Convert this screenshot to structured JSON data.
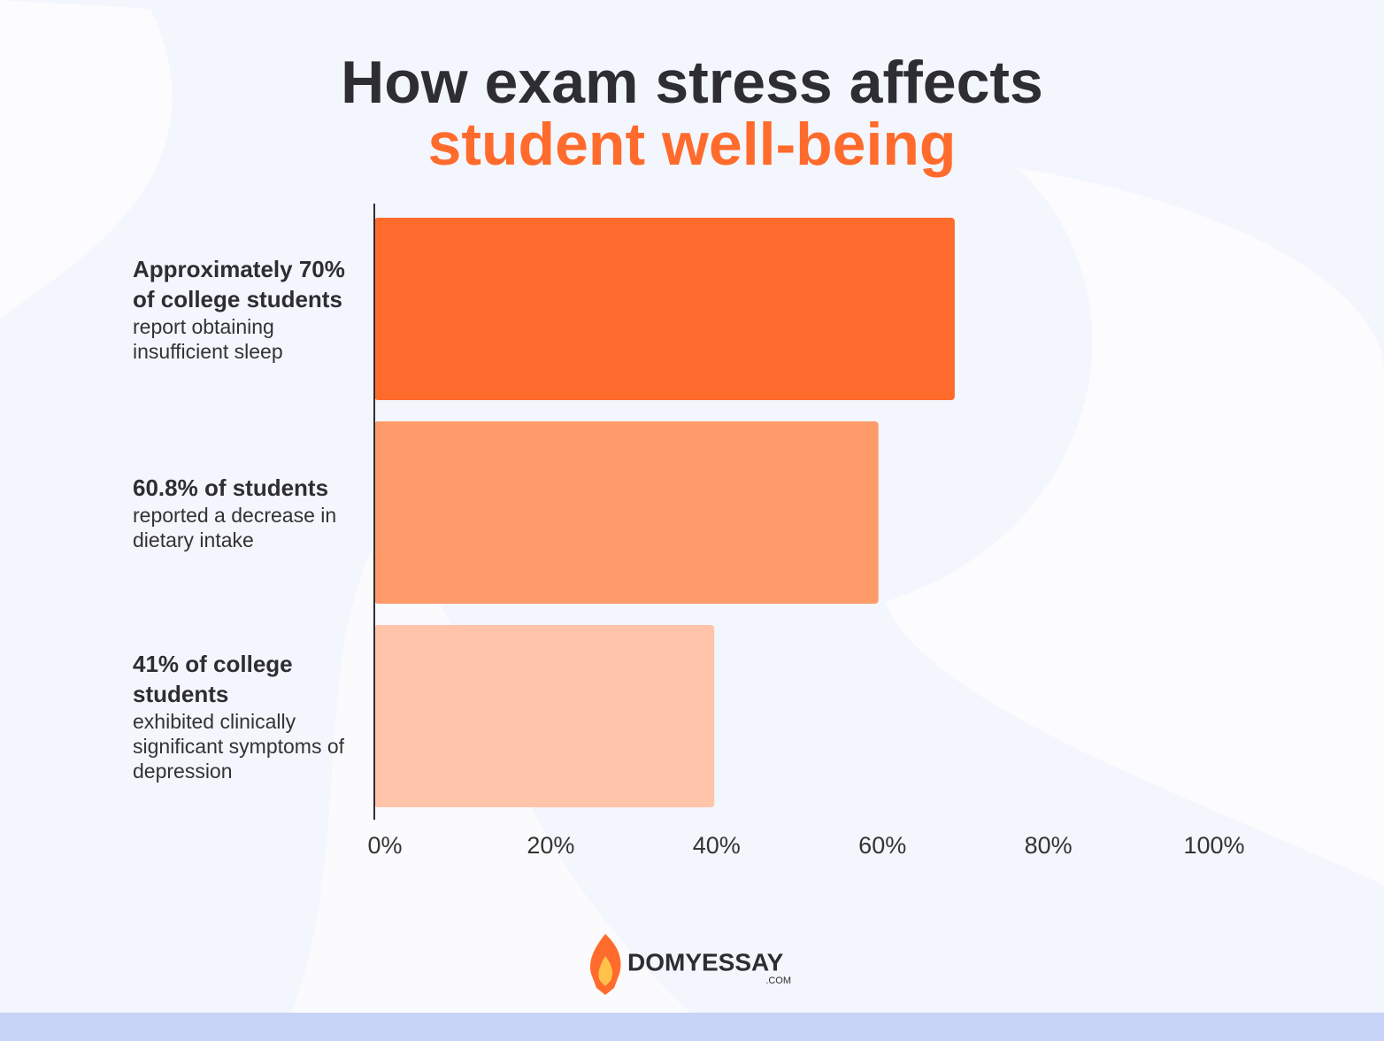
{
  "chart_data": {
    "type": "bar",
    "title": "How exam stress affects",
    "title_highlight": "student well-being",
    "categories": [
      "Approximately 70% of college students",
      "60.8% of students",
      "41% of college students"
    ],
    "descriptions": [
      "report obtaining insufficient sleep",
      "reported a decrease in dietary intake",
      "exhibited clinically significant symptoms of depression"
    ],
    "values": [
      70,
      60.8,
      41
    ],
    "colors": [
      "#ff6b2c",
      "#ff9b6b",
      "#ffc4aa"
    ],
    "xlim": [
      0,
      100
    ],
    "xticks": [
      {
        "value": 0,
        "label": "0%"
      },
      {
        "value": 20,
        "label": "20%"
      },
      {
        "value": 40,
        "label": "40%"
      },
      {
        "value": 60,
        "label": "60%"
      },
      {
        "value": 80,
        "label": "80%"
      },
      {
        "value": 100,
        "label": "100%"
      }
    ],
    "grid": false
  },
  "brand": {
    "name": "DOMYESSAY",
    "domain": ".COM"
  }
}
